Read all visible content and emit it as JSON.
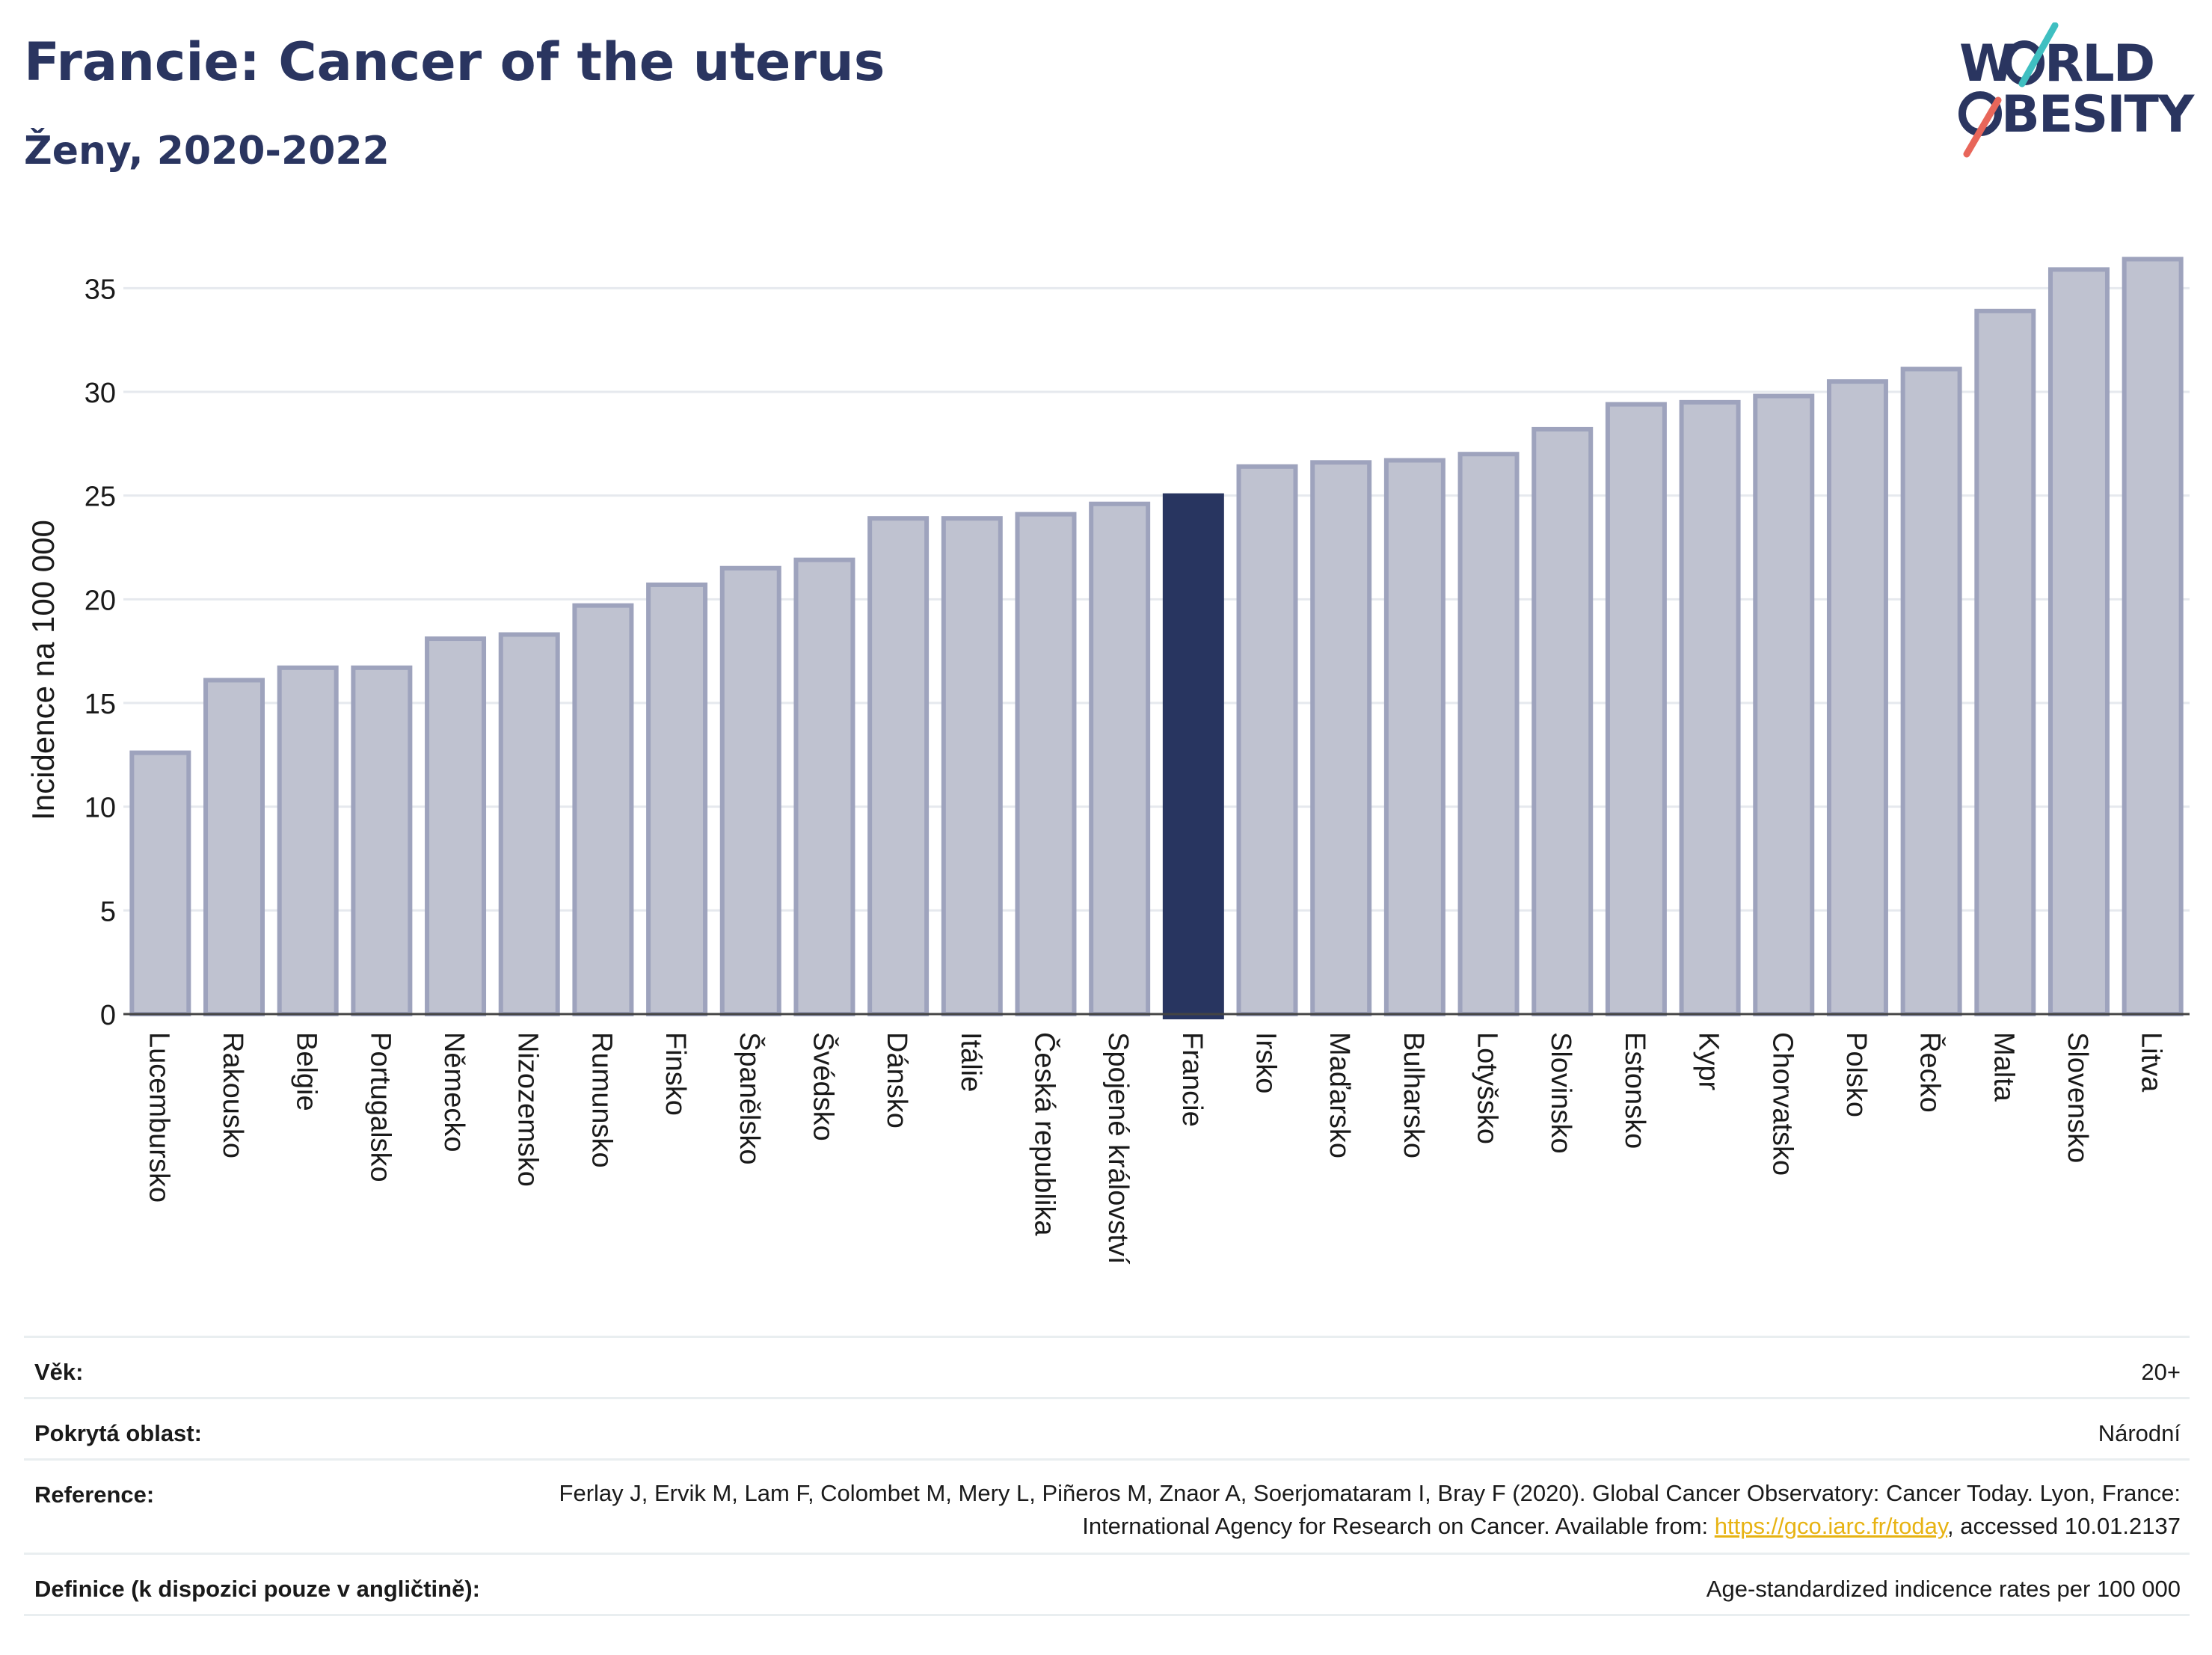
{
  "header": {
    "title": "Francie: Cancer of the uterus",
    "subtitle": "Ženy, 2020-2022"
  },
  "logo": {
    "line1": "W RLD",
    "line2": "BESITY",
    "accent_teal": "#3fbfc1",
    "accent_red": "#e8665a",
    "text_color": "#2a3560"
  },
  "colors": {
    "bar_fill": "#bfc2d0",
    "bar_stroke": "#9ea3bd",
    "highlight": "#283560",
    "grid": "#e6e9ee",
    "axis_text": "#1a1a1a"
  },
  "chart_data": {
    "type": "bar",
    "ylabel": "Incidence na 100 000",
    "xlabel": "",
    "ylim": [
      0,
      37.5
    ],
    "yticks": [
      0,
      5,
      10,
      15,
      20,
      25,
      30,
      35
    ],
    "highlight": "Francie",
    "categories": [
      "Lucembursko",
      "Rakousko",
      "Belgie",
      "Portugalsko",
      "Německo",
      "Nizozemsko",
      "Rumunsko",
      "Finsko",
      "Španělsko",
      "Švédsko",
      "Dánsko",
      "Itálie",
      "Česká republika",
      "Spojené království",
      "Francie",
      "Irsko",
      "Maďarsko",
      "Bulharsko",
      "Lotyšsko",
      "Slovinsko",
      "Estonsko",
      "Kypr",
      "Chorvatsko",
      "Polsko",
      "Řecko",
      "Malta",
      "Slovensko",
      "Litva"
    ],
    "values": [
      12.6,
      16.1,
      16.7,
      16.7,
      18.1,
      18.3,
      19.7,
      20.7,
      21.5,
      21.9,
      23.9,
      23.9,
      24.1,
      24.6,
      25.0,
      26.4,
      26.6,
      26.7,
      27.0,
      28.2,
      29.4,
      29.5,
      29.8,
      30.5,
      31.1,
      33.9,
      35.9,
      36.4
    ]
  },
  "info": {
    "rows": [
      {
        "label": "Věk:",
        "value": "20+"
      },
      {
        "label": "Pokrytá oblast:",
        "value": "Národní"
      },
      {
        "label": "Reference:",
        "value_before": "Ferlay J, Ervik M, Lam F, Colombet M, Mery L, Piñeros M, Znaor A, Soerjomataram I, Bray F (2020). Global Cancer Observatory: Cancer Today. Lyon, France: International Agency for Research on Cancer. Available from: ",
        "link": "https://gco.iarc.fr/today",
        "value_after": ", accessed 10.01.2137"
      },
      {
        "label": "Definice (k dispozici pouze v angličtině):",
        "value": "Age-standardized indicence rates per 100 000"
      }
    ]
  }
}
